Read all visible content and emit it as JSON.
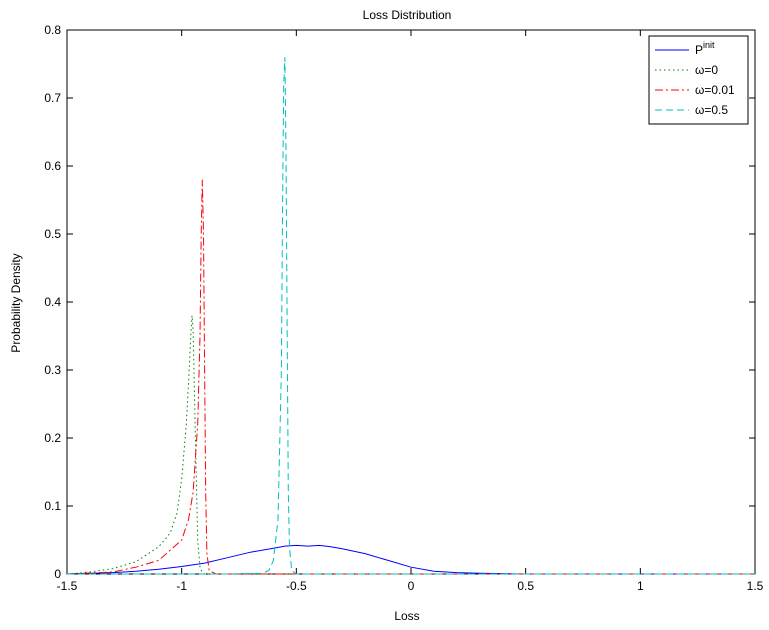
{
  "chart_data": {
    "type": "line",
    "title": "Loss Distribution",
    "xlabel": "Loss",
    "ylabel": "Probability Density",
    "xlim": [
      -1.5,
      1.5
    ],
    "ylim": [
      0,
      0.8
    ],
    "xticks": [
      -1.5,
      -1,
      -0.5,
      0,
      0.5,
      1,
      1.5
    ],
    "xtick_labels": [
      "-1.5",
      "-1",
      "-0.5",
      "0",
      "0.5",
      "1",
      "1.5"
    ],
    "yticks": [
      0,
      0.1,
      0.2,
      0.3,
      0.4,
      0.5,
      0.6,
      0.7,
      0.8
    ],
    "ytick_labels": [
      "0",
      "0.1",
      "0.2",
      "0.3",
      "0.4",
      "0.5",
      "0.6",
      "0.7",
      "0.8"
    ],
    "grid": false,
    "legend_position": "top-right",
    "series": [
      {
        "name": "P",
        "name_sup": "init",
        "color": "#0000ff",
        "dash": "solid",
        "x": [
          -1.5,
          -1.3,
          -1.2,
          -1.1,
          -1.0,
          -0.9,
          -0.8,
          -0.7,
          -0.6,
          -0.55,
          -0.5,
          -0.45,
          -0.4,
          -0.35,
          -0.3,
          -0.2,
          -0.1,
          0.0,
          0.1,
          0.2,
          0.3,
          0.5,
          1.0,
          1.5
        ],
        "y": [
          0.0,
          0.002,
          0.004,
          0.007,
          0.011,
          0.016,
          0.024,
          0.032,
          0.038,
          0.041,
          0.042,
          0.041,
          0.042,
          0.04,
          0.037,
          0.03,
          0.02,
          0.01,
          0.004,
          0.002,
          0.001,
          0.0,
          0.0,
          0.0
        ]
      },
      {
        "name": "ω=0",
        "color": "#008000",
        "dash": "dotted",
        "x": [
          -1.5,
          -1.4,
          -1.3,
          -1.2,
          -1.1,
          -1.05,
          -1.02,
          -1.0,
          -0.98,
          -0.97,
          -0.96,
          -0.955,
          -0.95,
          -0.94,
          -0.93,
          -0.92,
          -0.91,
          -0.9,
          -0.8,
          -0.5,
          1.5
        ],
        "y": [
          0.0,
          0.003,
          0.008,
          0.018,
          0.04,
          0.06,
          0.09,
          0.14,
          0.22,
          0.28,
          0.35,
          0.38,
          0.36,
          0.2,
          0.05,
          0.01,
          0.002,
          0.0,
          0.0,
          0.0,
          0.0
        ]
      },
      {
        "name": "ω=0.01",
        "color": "#ff0000",
        "dash": "dashdot",
        "x": [
          -1.5,
          -1.3,
          -1.2,
          -1.1,
          -1.0,
          -0.97,
          -0.95,
          -0.93,
          -0.92,
          -0.915,
          -0.91,
          -0.905,
          -0.9,
          -0.895,
          -0.89,
          -0.88,
          -0.85,
          -0.5,
          1.5
        ],
        "y": [
          0.0,
          0.003,
          0.01,
          0.02,
          0.05,
          0.08,
          0.12,
          0.22,
          0.35,
          0.5,
          0.58,
          0.5,
          0.3,
          0.12,
          0.03,
          0.005,
          0.0,
          0.0,
          0.0
        ]
      },
      {
        "name": "ω=0.5",
        "color": "#00bfbf",
        "dash": "dashed",
        "x": [
          -1.5,
          -0.8,
          -0.65,
          -0.62,
          -0.6,
          -0.58,
          -0.565,
          -0.56,
          -0.555,
          -0.55,
          -0.545,
          -0.54,
          -0.535,
          -0.53,
          -0.52,
          -0.5,
          1.5
        ],
        "y": [
          0.0,
          0.0,
          0.001,
          0.005,
          0.02,
          0.08,
          0.3,
          0.55,
          0.72,
          0.76,
          0.62,
          0.35,
          0.12,
          0.04,
          0.005,
          0.0,
          0.0
        ]
      }
    ]
  }
}
